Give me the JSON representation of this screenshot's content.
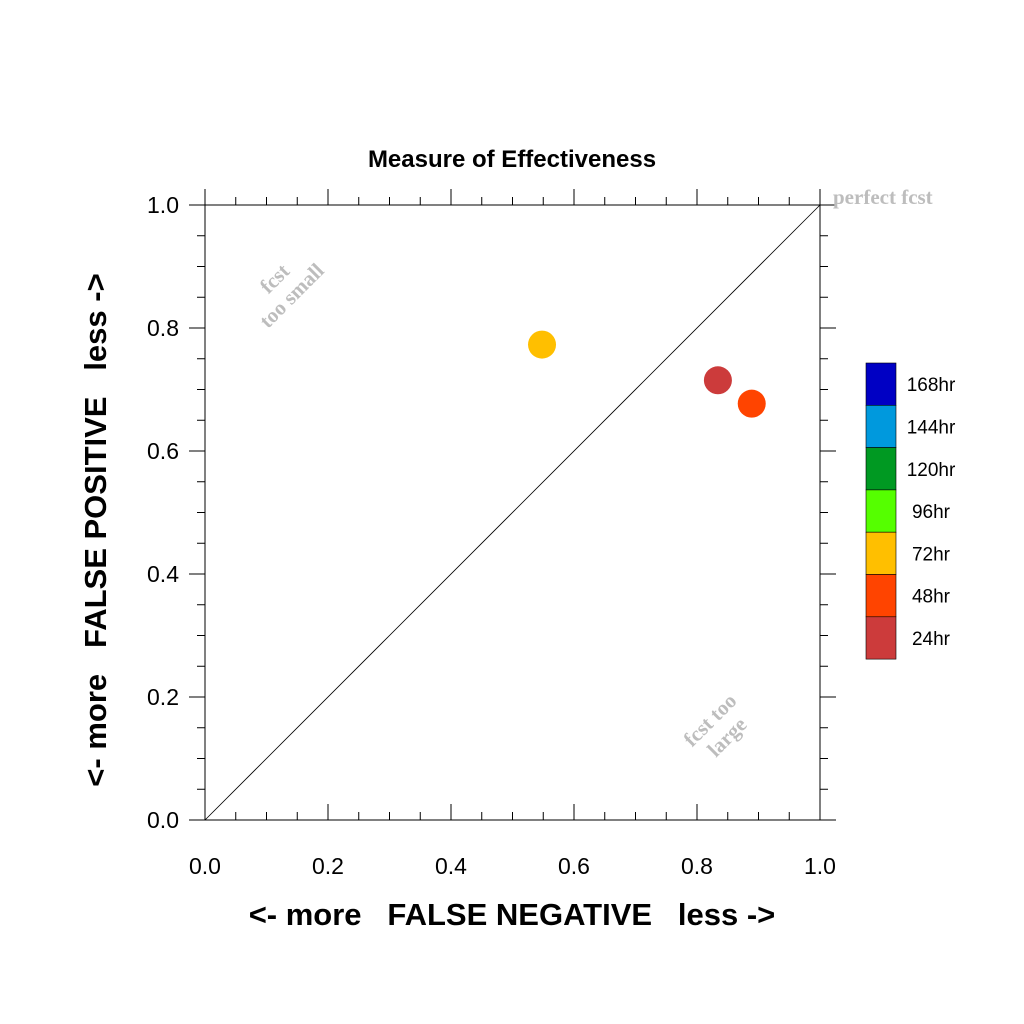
{
  "chart_data": {
    "type": "scatter",
    "title": "Measure of Effectiveness",
    "xlabel": "<- more   FALSE NEGATIVE   less ->",
    "ylabel": "<- more   FALSE POSITIVE   less ->",
    "xlim": [
      0,
      1
    ],
    "ylim": [
      0,
      1
    ],
    "x_ticks": [
      "0.0",
      "0.2",
      "0.4",
      "0.6",
      "0.8",
      "1.0"
    ],
    "y_ticks": [
      "0.0",
      "0.2",
      "0.4",
      "0.6",
      "0.8",
      "1.0"
    ],
    "grid": false,
    "diagonal_line": true,
    "annotations": {
      "perfect": "perfect fcst",
      "too_small_line1": "fcst",
      "too_small_line2": "too small",
      "too_large_line1": "fcst too",
      "too_large_line2": "large"
    },
    "legend_placement": "right",
    "legend": [
      {
        "label": "168hr",
        "color": "#0000c4"
      },
      {
        "label": "144hr",
        "color": "#0099dd"
      },
      {
        "label": "120hr",
        "color": "#009922"
      },
      {
        "label": "96hr",
        "color": "#55ff00"
      },
      {
        "label": "72hr",
        "color": "#ffbf00"
      },
      {
        "label": "48hr",
        "color": "#ff4400"
      },
      {
        "label": "24hr",
        "color": "#cc3b3b"
      }
    ],
    "points": [
      {
        "series": "72hr",
        "x": 0.548,
        "y": 0.773,
        "color": "#ffbf00"
      },
      {
        "series": "24hr",
        "x": 0.834,
        "y": 0.715,
        "color": "#cc3b3b"
      },
      {
        "series": "48hr",
        "x": 0.889,
        "y": 0.677,
        "color": "#ff4400"
      }
    ]
  }
}
